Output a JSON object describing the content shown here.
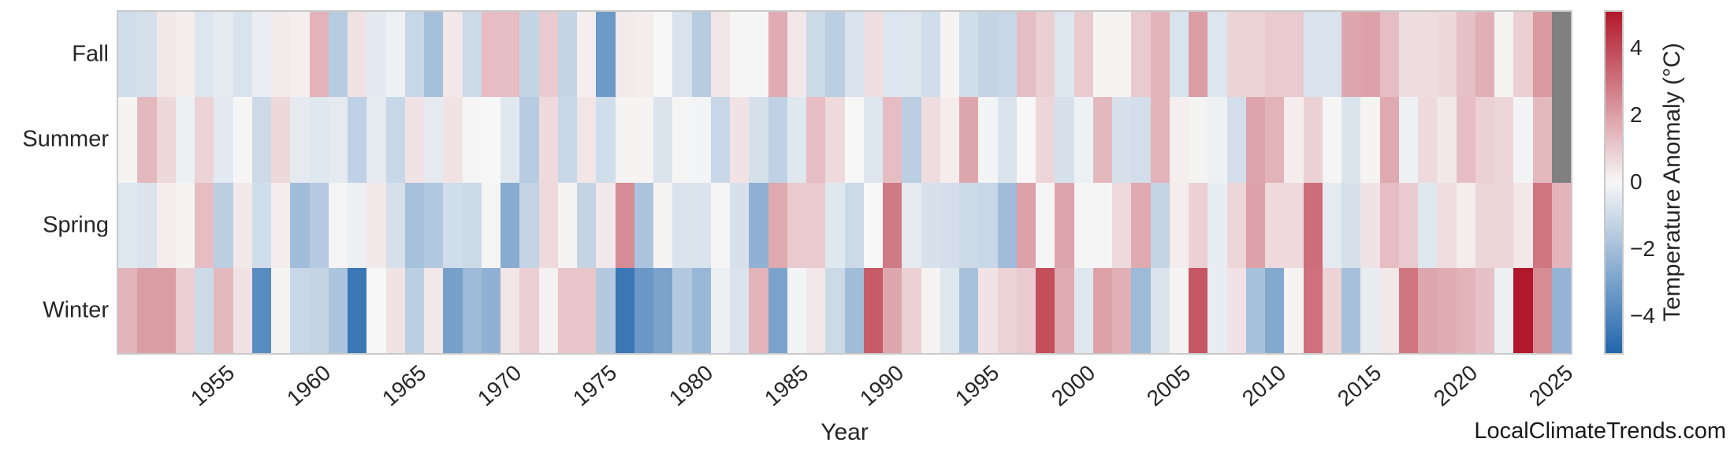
{
  "watermark": "LocalClimateTrends.com",
  "chart_data": {
    "type": "heatmap",
    "title": "",
    "xlabel": "Year",
    "ylabel": "",
    "rows": [
      "Fall",
      "Summer",
      "Spring",
      "Winter"
    ],
    "years": [
      1950,
      1951,
      1952,
      1953,
      1954,
      1955,
      1956,
      1957,
      1958,
      1959,
      1960,
      1961,
      1962,
      1963,
      1964,
      1965,
      1966,
      1967,
      1968,
      1969,
      1970,
      1971,
      1972,
      1973,
      1974,
      1975,
      1976,
      1977,
      1978,
      1979,
      1980,
      1981,
      1982,
      1983,
      1984,
      1985,
      1986,
      1987,
      1988,
      1989,
      1990,
      1991,
      1992,
      1993,
      1994,
      1995,
      1996,
      1997,
      1998,
      1999,
      2000,
      2001,
      2002,
      2003,
      2004,
      2005,
      2006,
      2007,
      2008,
      2009,
      2010,
      2011,
      2012,
      2013,
      2014,
      2015,
      2016,
      2017,
      2018,
      2019,
      2020,
      2021,
      2022,
      2023,
      2024,
      2025
    ],
    "x_ticks": [
      1955,
      1960,
      1965,
      1970,
      1975,
      1980,
      1985,
      1990,
      1995,
      2000,
      2005,
      2010,
      2015,
      2020,
      2025
    ],
    "series": [
      {
        "name": "Fall",
        "values": [
          -0.9,
          -0.8,
          0.35,
          0.25,
          -0.6,
          -0.4,
          -0.7,
          -0.3,
          0.3,
          0.2,
          1.5,
          -1.5,
          0.5,
          -0.5,
          -0.2,
          -1.1,
          -1.9,
          0.35,
          -1.0,
          1.3,
          1.3,
          -1.2,
          1.0,
          -1.2,
          0.2,
          -3.2,
          0.3,
          0.25,
          0.0,
          -0.7,
          -1.5,
          0.4,
          0.05,
          0.05,
          1.7,
          0.35,
          -1.0,
          -1.4,
          -0.7,
          0.55,
          -0.6,
          -0.6,
          -0.9,
          0.1,
          -0.9,
          -1.2,
          -1.1,
          1.3,
          0.9,
          -0.6,
          1.0,
          0.1,
          0.1,
          1.0,
          1.5,
          -0.7,
          2.0,
          -0.6,
          0.8,
          0.8,
          1.0,
          1.0,
          -0.7,
          -0.7,
          1.8,
          1.9,
          1.3,
          0.6,
          0.6,
          0.7,
          1.2,
          1.6,
          0.1,
          0.9,
          2.1,
          null
        ]
      },
      {
        "name": "Summer",
        "values": [
          0.1,
          1.4,
          0.7,
          -0.25,
          0.8,
          -0.5,
          0.05,
          -1.0,
          0.7,
          -0.45,
          -0.55,
          -0.45,
          -1.3,
          -0.45,
          -1.1,
          0.45,
          -0.45,
          0.45,
          0.05,
          0.0,
          -0.55,
          -1.5,
          0.65,
          -1.1,
          0.4,
          -0.9,
          0.1,
          0.1,
          -0.65,
          0.05,
          -0.1,
          -1.1,
          0.45,
          -0.8,
          -1.3,
          -0.55,
          1.3,
          0.65,
          0.0,
          -0.6,
          1.3,
          -1.4,
          0.6,
          0.25,
          1.8,
          -0.1,
          -0.65,
          0.0,
          0.75,
          -0.75,
          -0.2,
          1.4,
          -0.75,
          -0.85,
          1.5,
          0.2,
          0.1,
          -0.2,
          -0.85,
          1.85,
          1.5,
          0.25,
          0.85,
          0.05,
          -0.65,
          0.1,
          1.75,
          -0.2,
          0.65,
          0.35,
          1.3,
          0.85,
          0.75,
          -0.1,
          1.4,
          null
        ]
      },
      {
        "name": "Spring",
        "values": [
          -0.55,
          -0.65,
          0.25,
          0.1,
          1.3,
          -1.4,
          0.35,
          -0.9,
          0.25,
          -2.0,
          -1.55,
          0.05,
          -0.25,
          0.35,
          -0.8,
          -1.85,
          -1.6,
          -0.9,
          -1.0,
          0.05,
          -2.6,
          -1.2,
          0.65,
          0.1,
          -1.2,
          0.35,
          2.4,
          -1.75,
          0.1,
          -0.7,
          -0.65,
          0.05,
          -0.75,
          -2.4,
          1.75,
          1.0,
          1.0,
          -0.55,
          -1.0,
          0.0,
          2.8,
          -0.45,
          -0.75,
          -0.85,
          -1.0,
          -1.1,
          -2.0,
          1.9,
          0.05,
          1.85,
          0.05,
          0.05,
          0.65,
          1.75,
          -1.2,
          0.25,
          0.85,
          -0.35,
          0.75,
          1.9,
          0.65,
          0.65,
          3.1,
          -0.45,
          -0.8,
          0.45,
          1.3,
          1.0,
          -0.55,
          0.55,
          0.25,
          0.75,
          0.75,
          0.35,
          2.9,
          1.5
        ]
      },
      {
        "name": "Winter",
        "values": [
          1.5,
          2.0,
          2.0,
          0.9,
          -1.0,
          1.4,
          0.45,
          -3.7,
          0.1,
          -1.1,
          -1.2,
          -1.75,
          -4.4,
          0.0,
          0.45,
          -1.4,
          0.35,
          -3.0,
          -2.1,
          -2.4,
          0.4,
          0.9,
          0.15,
          1.1,
          1.1,
          -1.6,
          -4.4,
          -3.3,
          -2.9,
          -1.6,
          -2.2,
          -0.25,
          -0.65,
          1.5,
          -2.9,
          -0.1,
          0.35,
          -1.0,
          -2.0,
          3.5,
          1.8,
          0.85,
          0.1,
          -0.55,
          -1.85,
          0.45,
          0.8,
          1.0,
          3.8,
          1.7,
          -0.55,
          1.9,
          1.6,
          -2.1,
          -0.65,
          0.1,
          3.6,
          -0.35,
          0.45,
          -1.85,
          -2.7,
          0.1,
          3.0,
          0.8,
          -1.9,
          -0.35,
          0.35,
          2.9,
          1.8,
          1.7,
          1.5,
          1.2,
          -0.25,
          5.0,
          2.4,
          -2.3
        ]
      }
    ],
    "colorbar": {
      "label": "Temperature Anomaly (°C)",
      "ticks": [
        4,
        2,
        0,
        -2,
        -4
      ],
      "tick_labels": [
        "4",
        "2",
        "0",
        "−2",
        "−4"
      ],
      "vmin": -5.08,
      "vmax": 5.08,
      "color_negative": "#2166ac",
      "color_center": "#f7f7f7",
      "color_positive": "#b2182b",
      "color_missing": "#808080",
      "color_span": 5.0,
      "position": "right"
    },
    "grid": false,
    "legend": "colorbar-right"
  }
}
